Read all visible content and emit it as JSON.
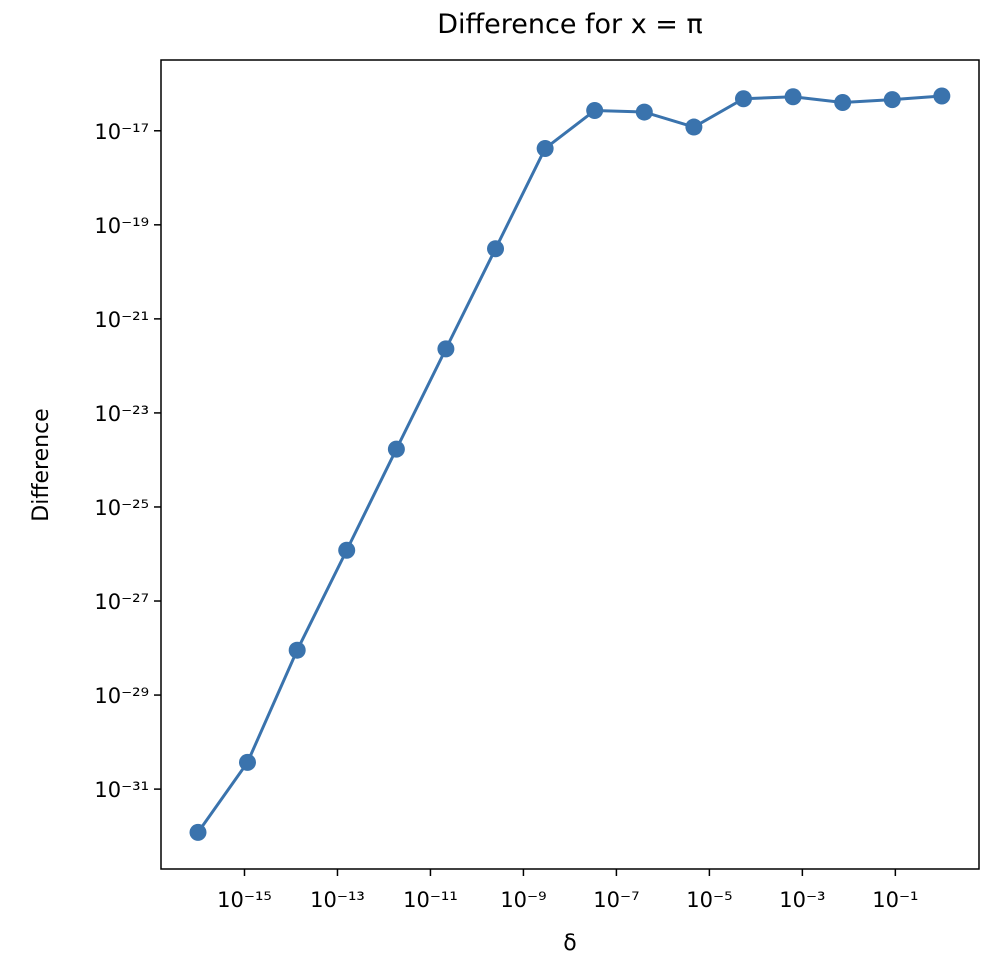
{
  "chart_data": {
    "type": "line",
    "title": "Difference for x = π",
    "xlabel": "δ",
    "ylabel": "Difference",
    "xscale": "log",
    "yscale": "log",
    "x": [
      1e-16,
      1.16e-15,
      1.36e-14,
      1.58e-13,
      1.85e-12,
      2.15e-11,
      2.51e-10,
      2.93e-09,
      3.41e-08,
      3.98e-07,
      4.64e-06,
      5.41e-05,
      0.000631,
      0.00736,
      0.0858,
      1
    ],
    "series": [
      {
        "name": "Difference",
        "color": "#3a73ad",
        "values": [
          1.2e-32,
          3.7e-31,
          9e-29,
          1.2e-26,
          1.7e-24,
          2.3e-22,
          3.1e-20,
          4.2e-18,
          2.7e-17,
          2.5e-17,
          1.2e-17,
          4.8e-17,
          5.3e-17,
          4e-17,
          4.6e-17,
          5.5e-17
        ]
      }
    ],
    "xlim": [
      1.6e-17,
      6.3
    ],
    "ylim": [
      2e-33,
      3.2e-16
    ],
    "xticks": [
      {
        "value": 1e-15,
        "label": "10⁻¹⁵"
      },
      {
        "value": 1e-13,
        "label": "10⁻¹³"
      },
      {
        "value": 1e-11,
        "label": "10⁻¹¹"
      },
      {
        "value": 1e-09,
        "label": "10⁻⁹"
      },
      {
        "value": 1e-07,
        "label": "10⁻⁷"
      },
      {
        "value": 1e-05,
        "label": "10⁻⁵"
      },
      {
        "value": 0.001,
        "label": "10⁻³"
      },
      {
        "value": 0.1,
        "label": "10⁻¹"
      }
    ],
    "yticks": [
      {
        "value": 1e-31,
        "label": "10⁻³¹"
      },
      {
        "value": 1e-29,
        "label": "10⁻²⁹"
      },
      {
        "value": 1e-27,
        "label": "10⁻²⁷"
      },
      {
        "value": 1e-25,
        "label": "10⁻²⁵"
      },
      {
        "value": 1e-23,
        "label": "10⁻²³"
      },
      {
        "value": 1e-21,
        "label": "10⁻²¹"
      },
      {
        "value": 1e-19,
        "label": "10⁻¹⁹"
      },
      {
        "value": 1e-17,
        "label": "10⁻¹⁷"
      }
    ],
    "grid": false
  }
}
